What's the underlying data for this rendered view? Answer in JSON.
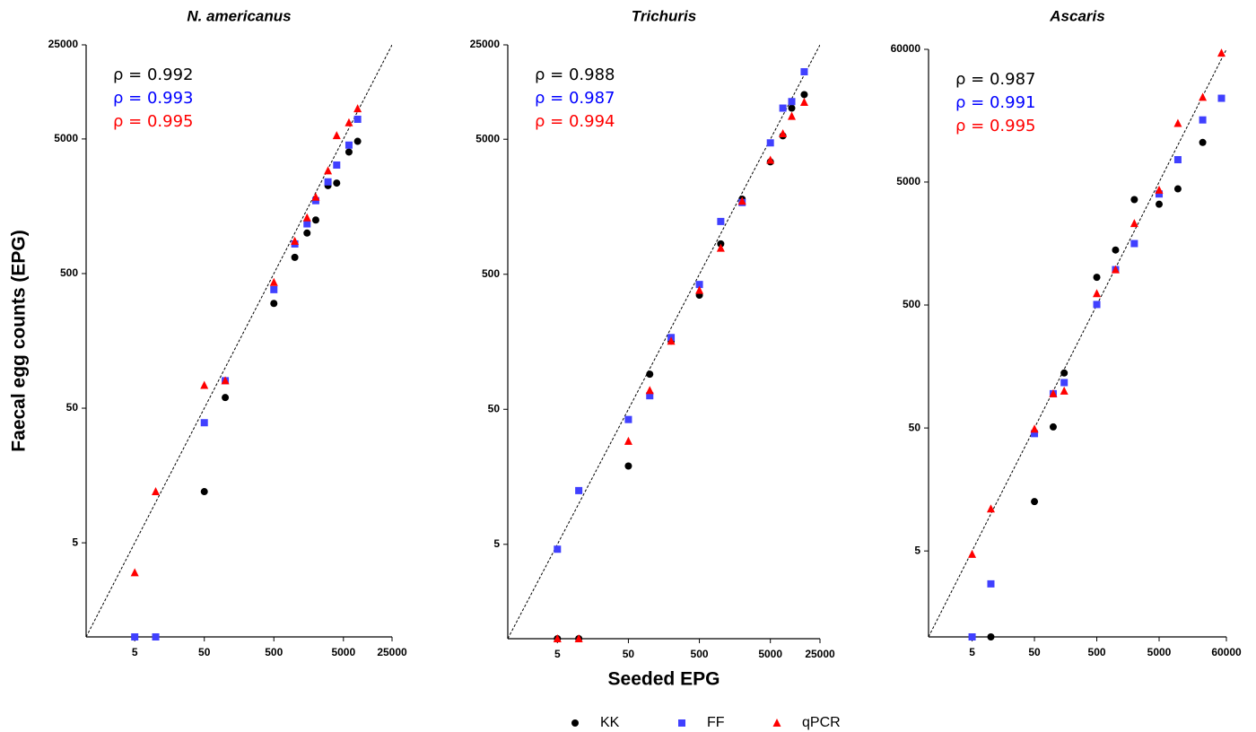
{
  "chart_data": [
    {
      "type": "scatter",
      "title": "N. americanus",
      "ylabel": "Faecal egg counts (EPG)",
      "log_x": true,
      "log_y": true,
      "identity_line": true,
      "xlim": [
        1,
        25000
      ],
      "ylim": [
        1,
        25000
      ],
      "xticks": [
        5,
        50,
        500,
        5000,
        25000
      ],
      "yticks": [
        5,
        50,
        500,
        5000,
        25000
      ],
      "annotations": [
        {
          "text": "ρ = 0.992",
          "color": "#000000"
        },
        {
          "text": "ρ = 0.993",
          "color": "#0000ff"
        },
        {
          "text": "ρ = 0.995",
          "color": "#ff0000"
        }
      ],
      "x": [
        5,
        10,
        50,
        100,
        500,
        1000,
        1500,
        2000,
        3000,
        4000,
        6000,
        8000
      ],
      "series": [
        {
          "name": "KK",
          "color": "#000000",
          "marker": "circle",
          "values": [
            1,
            1,
            12,
            60,
            300,
            660,
            1000,
            1250,
            2250,
            2350,
            4000,
            4800
          ]
        },
        {
          "name": "FF",
          "color": "#4040ff",
          "marker": "square",
          "values": [
            1,
            1,
            39,
            80,
            380,
            830,
            1170,
            1740,
            2400,
            3200,
            4500,
            7000
          ]
        },
        {
          "name": "qPCR",
          "color": "#ff0000",
          "marker": "triangle",
          "values": [
            3,
            12,
            74,
            80,
            430,
            870,
            1300,
            1850,
            2900,
            5300,
            6600,
            8400
          ]
        }
      ]
    },
    {
      "type": "scatter",
      "title": "Trichuris",
      "xlabel": "Seeded EPG",
      "log_x": true,
      "log_y": true,
      "identity_line": true,
      "xlim": [
        1,
        25000
      ],
      "ylim": [
        1,
        25000
      ],
      "xticks": [
        5,
        50,
        500,
        5000,
        25000
      ],
      "yticks": [
        5,
        50,
        500,
        5000,
        25000
      ],
      "annotations": [
        {
          "text": "ρ = 0.988",
          "color": "#000000"
        },
        {
          "text": "ρ = 0.987",
          "color": "#0000ff"
        },
        {
          "text": "ρ = 0.994",
          "color": "#ff0000"
        }
      ],
      "x": [
        5,
        10,
        50,
        100,
        200,
        500,
        1000,
        2000,
        5000,
        7500,
        10000,
        15000
      ],
      "series": [
        {
          "name": "KK",
          "color": "#000000",
          "marker": "circle",
          "values": [
            1,
            1,
            19,
            91,
            160,
            350,
            840,
            1800,
            3400,
            5300,
            8500,
            10700
          ]
        },
        {
          "name": "FF",
          "color": "#4040ff",
          "marker": "square",
          "values": [
            4.6,
            12.5,
            42,
            63,
            170,
            420,
            1230,
            1700,
            4700,
            8500,
            9500,
            15800
          ]
        },
        {
          "name": "qPCR",
          "color": "#ff0000",
          "marker": "triangle",
          "values": [
            1,
            1,
            29,
            69,
            160,
            380,
            780,
            1740,
            3500,
            5500,
            7400,
            9400
          ]
        }
      ]
    },
    {
      "type": "scatter",
      "title": "Ascaris",
      "log_x": true,
      "log_y": true,
      "identity_line": true,
      "xlim": [
        1,
        60000
      ],
      "ylim": [
        1,
        60000
      ],
      "xticks": [
        5,
        50,
        500,
        5000,
        60000
      ],
      "yticks": [
        5,
        50,
        500,
        5000,
        60000
      ],
      "annotations": [
        {
          "text": "ρ = 0.987",
          "color": "#000000"
        },
        {
          "text": "ρ = 0.991",
          "color": "#0000ff"
        },
        {
          "text": "ρ = 0.995",
          "color": "#ff0000"
        }
      ],
      "x": [
        5,
        10,
        50,
        100,
        150,
        500,
        1000,
        2000,
        5000,
        10000,
        25000,
        50000
      ],
      "series": [
        {
          "name": "KK",
          "color": "#000000",
          "marker": "circle",
          "values": [
            1,
            1,
            12.6,
            51,
            140,
            840,
            1400,
            3600,
            3300,
            4400,
            10500,
            24000
          ]
        },
        {
          "name": "FF",
          "color": "#4040ff",
          "marker": "square",
          "values": [
            1,
            2.7,
            45,
            95,
            117,
            505,
            970,
            1580,
            4000,
            7600,
            16000,
            24000
          ]
        },
        {
          "name": "qPCR",
          "color": "#ff0000",
          "marker": "triangle",
          "values": [
            4.7,
            11,
            49,
            95,
            100,
            620,
            970,
            2300,
            4300,
            15000,
            24500,
            56000
          ]
        }
      ]
    }
  ]
}
